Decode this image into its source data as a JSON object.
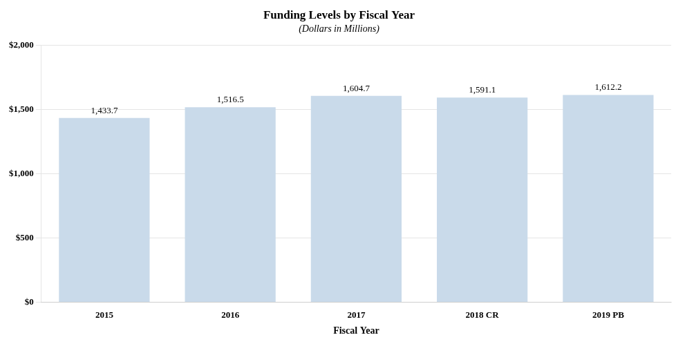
{
  "chart_data": {
    "type": "bar",
    "title": "Funding Levels by Fiscal Year",
    "subtitle": "(Dollars in Millions)",
    "xlabel": "Fiscal Year",
    "categories": [
      "2015",
      "2016",
      "2017",
      "2018 CR",
      "2019 PB"
    ],
    "values": [
      1433.7,
      1516.5,
      1604.7,
      1591.1,
      1612.2
    ],
    "value_labels": [
      "1,433.7",
      "1,516.5",
      "1,604.7",
      "1,591.1",
      "1,612.2"
    ],
    "data_labels": true,
    "color": "#c9daea",
    "ylim": [
      0,
      2000
    ],
    "yticks": [
      {
        "value": 0,
        "label": "$0"
      },
      {
        "value": 500,
        "label": "$500"
      },
      {
        "value": 1000,
        "label": "$1,000"
      },
      {
        "value": 1500,
        "label": "$1,500"
      },
      {
        "value": 2000,
        "label": "$2,000"
      }
    ],
    "grid": true
  }
}
